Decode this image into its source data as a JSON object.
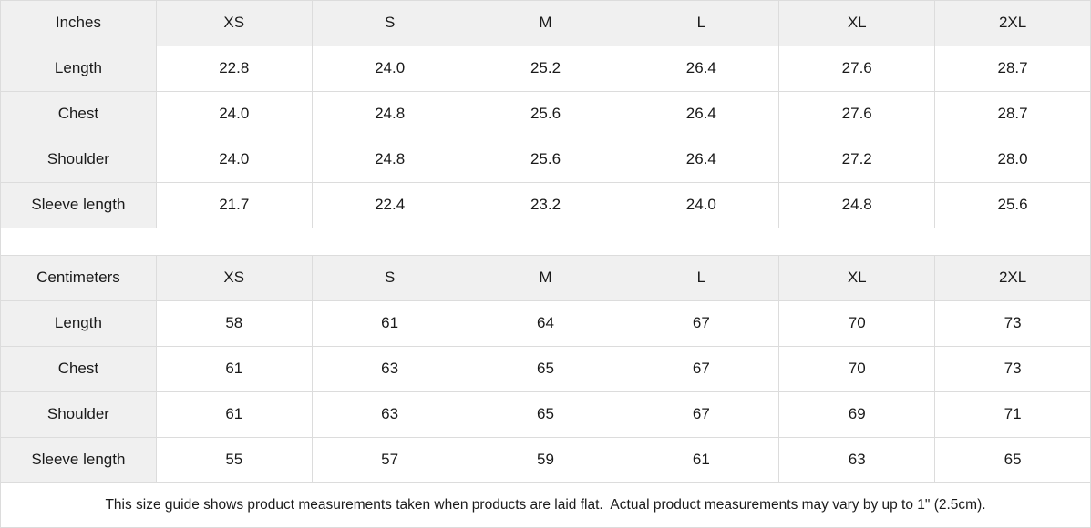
{
  "colors": {
    "header_bg": "#f0f0f0",
    "border": "#dcdcdc",
    "text": "#1a1a1a",
    "bg": "#ffffff"
  },
  "chart_data": [
    {
      "type": "table",
      "unit": "Inches",
      "columns": [
        "XS",
        "S",
        "M",
        "L",
        "XL",
        "2XL"
      ],
      "rows": [
        {
          "label": "Length",
          "values": [
            "22.8",
            "24.0",
            "25.2",
            "26.4",
            "27.6",
            "28.7"
          ]
        },
        {
          "label": "Chest",
          "values": [
            "24.0",
            "24.8",
            "25.6",
            "26.4",
            "27.6",
            "28.7"
          ]
        },
        {
          "label": "Shoulder",
          "values": [
            "24.0",
            "24.8",
            "25.6",
            "26.4",
            "27.2",
            "28.0"
          ]
        },
        {
          "label": "Sleeve length",
          "values": [
            "21.7",
            "22.4",
            "23.2",
            "24.0",
            "24.8",
            "25.6"
          ]
        }
      ]
    },
    {
      "type": "table",
      "unit": "Centimeters",
      "columns": [
        "XS",
        "S",
        "M",
        "L",
        "XL",
        "2XL"
      ],
      "rows": [
        {
          "label": "Length",
          "values": [
            "58",
            "61",
            "64",
            "67",
            "70",
            "73"
          ]
        },
        {
          "label": "Chest",
          "values": [
            "61",
            "63",
            "65",
            "67",
            "70",
            "73"
          ]
        },
        {
          "label": "Shoulder",
          "values": [
            "61",
            "63",
            "65",
            "67",
            "69",
            "71"
          ]
        },
        {
          "label": "Sleeve length",
          "values": [
            "55",
            "57",
            "59",
            "61",
            "63",
            "65"
          ]
        }
      ]
    }
  ],
  "footer": {
    "note": "This size guide shows product measurements taken when products are laid flat.  Actual product measurements may vary by up to 1\" (2.5cm)."
  }
}
